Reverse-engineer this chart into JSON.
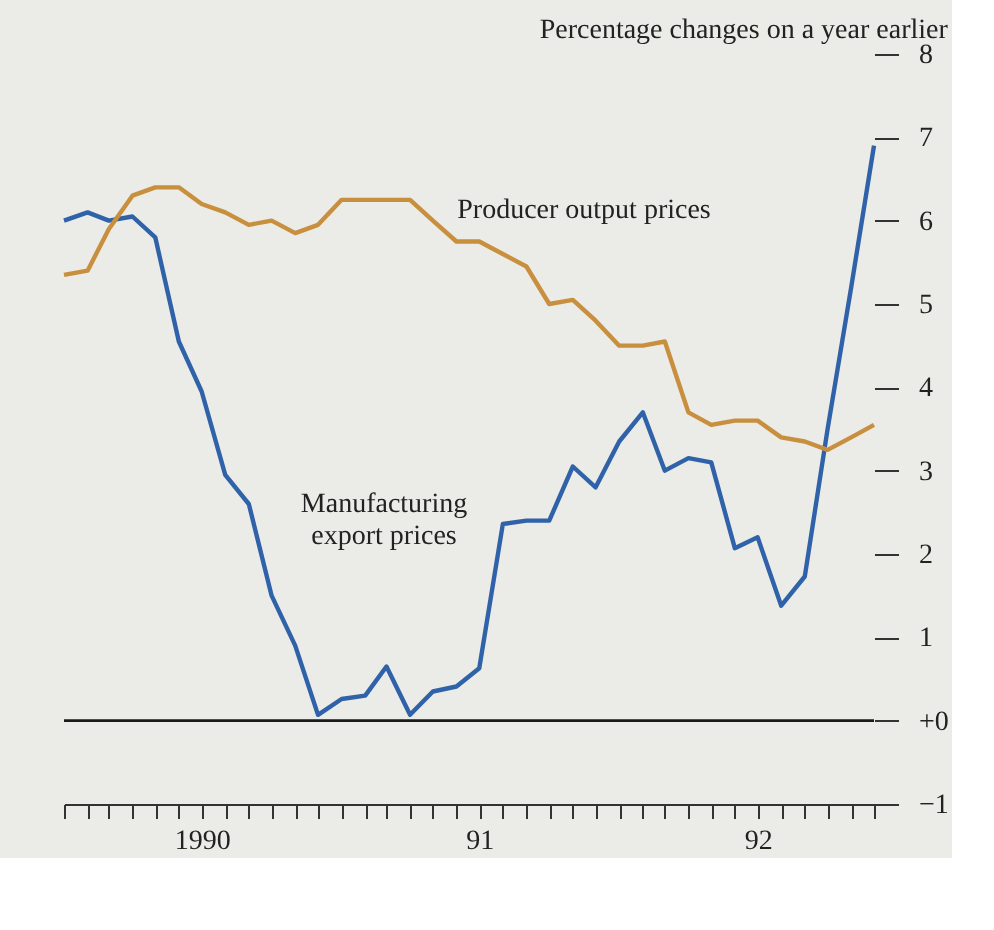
{
  "chart_data": {
    "type": "line",
    "title": "Percentage changes on a year earlier",
    "x": [
      "1990-01",
      "1990-02",
      "1990-03",
      "1990-04",
      "1990-05",
      "1990-06",
      "1990-07",
      "1990-08",
      "1990-09",
      "1990-10",
      "1990-11",
      "1990-12",
      "1991-01",
      "1991-02",
      "1991-03",
      "1991-04",
      "1991-05",
      "1991-06",
      "1991-07",
      "1991-08",
      "1991-09",
      "1991-10",
      "1991-11",
      "1991-12",
      "1992-01",
      "1992-02",
      "1992-03",
      "1992-04",
      "1992-05",
      "1992-06",
      "1992-07",
      "1992-08",
      "1992-09",
      "1992-10",
      "1992-11",
      "1992-12"
    ],
    "series": [
      {
        "name": "Manufacturing export prices",
        "color": "#2f62a8",
        "values": [
          6.0,
          6.1,
          6.0,
          6.05,
          5.8,
          4.55,
          3.95,
          2.95,
          2.6,
          1.5,
          0.9,
          0.07,
          0.26,
          0.3,
          0.65,
          0.07,
          0.35,
          0.41,
          0.63,
          2.36,
          2.4,
          2.4,
          3.05,
          2.8,
          3.35,
          3.7,
          3.0,
          3.15,
          3.1,
          2.07,
          2.2,
          1.38,
          1.73,
          3.5,
          5.2,
          6.9
        ]
      },
      {
        "name": "Producer output prices",
        "color": "#c8903e",
        "values": [
          5.35,
          5.4,
          5.9,
          6.3,
          6.4,
          6.4,
          6.2,
          6.1,
          5.95,
          6.0,
          5.85,
          5.95,
          6.25,
          6.25,
          6.25,
          6.25,
          6.0,
          5.75,
          5.75,
          5.6,
          5.45,
          5.0,
          5.05,
          4.8,
          4.5,
          4.5,
          4.55,
          3.7,
          3.55,
          3.6,
          3.6,
          3.4,
          3.35,
          3.25,
          3.4,
          3.55
        ]
      }
    ],
    "xlim": [
      "1990-01",
      "1992-12"
    ],
    "xticks": [
      {
        "value": "1990-01",
        "label": null
      },
      {
        "value": "1990-02",
        "label": null
      },
      {
        "value": "1990-03",
        "label": null
      },
      {
        "value": "1990-04",
        "label": null
      },
      {
        "value": "1990-05",
        "label": null
      },
      {
        "value": "1990-06",
        "label": null
      },
      {
        "value": "1990-07",
        "label": "1990"
      },
      {
        "value": "1990-08",
        "label": null
      },
      {
        "value": "1990-09",
        "label": null
      },
      {
        "value": "1990-10",
        "label": null
      },
      {
        "value": "1990-11",
        "label": null
      },
      {
        "value": "1990-12",
        "label": null
      },
      {
        "value": "1991-01",
        "label": null
      },
      {
        "value": "1991-02",
        "label": null
      },
      {
        "value": "1991-03",
        "label": null
      },
      {
        "value": "1991-04",
        "label": null
      },
      {
        "value": "1991-05",
        "label": null
      },
      {
        "value": "1991-06",
        "label": null
      },
      {
        "value": "1991-07",
        "label": "91"
      },
      {
        "value": "1991-08",
        "label": null
      },
      {
        "value": "1991-09",
        "label": null
      },
      {
        "value": "1991-10",
        "label": null
      },
      {
        "value": "1991-11",
        "label": null
      },
      {
        "value": "1991-12",
        "label": null
      },
      {
        "value": "1992-01",
        "label": null
      },
      {
        "value": "1992-02",
        "label": null
      },
      {
        "value": "1992-03",
        "label": null
      },
      {
        "value": "1992-04",
        "label": null
      },
      {
        "value": "1992-05",
        "label": null
      },
      {
        "value": "1992-06",
        "label": null
      },
      {
        "value": "1992-07",
        "label": "92"
      },
      {
        "value": "1992-08",
        "label": null
      },
      {
        "value": "1992-09",
        "label": null
      },
      {
        "value": "1992-10",
        "label": null
      },
      {
        "value": "1992-11",
        "label": null
      },
      {
        "value": "1992-12",
        "label": null
      }
    ],
    "ylim": [
      -1,
      8
    ],
    "yticks": [
      {
        "value": -1,
        "label": "−1"
      },
      {
        "value": 0,
        "label": "+0"
      },
      1,
      2,
      3,
      4,
      5,
      6,
      7,
      8
    ],
    "ref_lines": [
      {
        "axis": "y",
        "value": 0,
        "color": "#1a1a1a"
      }
    ],
    "grid": false,
    "legend": false,
    "marker": "none",
    "line_style": "solid"
  }
}
